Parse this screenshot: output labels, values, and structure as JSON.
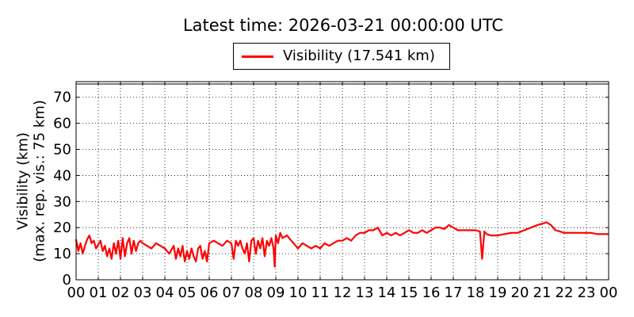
{
  "chart_data": {
    "type": "line",
    "title": "Latest time: 2026-03-21 00:00:00 UTC",
    "ylabel_line1": "Visibility (km)",
    "ylabel_line2": "(max. rep. vis.: 75 km)",
    "xlabel": "",
    "xlim": [
      0,
      24
    ],
    "ylim": [
      0,
      76
    ],
    "grid": true,
    "legend_position": "top-center-outside",
    "x_ticks": [
      0,
      1,
      2,
      3,
      4,
      5,
      6,
      7,
      8,
      9,
      10,
      11,
      12,
      13,
      14,
      15,
      16,
      17,
      18,
      19,
      20,
      21,
      22,
      23,
      24
    ],
    "x_tick_labels": [
      "00",
      "01",
      "02",
      "03",
      "04",
      "05",
      "06",
      "07",
      "08",
      "09",
      "10",
      "11",
      "12",
      "13",
      "14",
      "15",
      "16",
      "17",
      "18",
      "19",
      "20",
      "21",
      "22",
      "23",
      "00"
    ],
    "y_ticks": [
      0,
      10,
      20,
      30,
      40,
      50,
      60,
      70
    ],
    "series": [
      {
        "name": "Visibility (17.541 km)",
        "color": "#ff0000",
        "x": [
          0.0,
          0.1,
          0.2,
          0.3,
          0.4,
          0.5,
          0.6,
          0.7,
          0.8,
          0.9,
          1.0,
          1.1,
          1.2,
          1.3,
          1.4,
          1.5,
          1.6,
          1.7,
          1.8,
          1.9,
          2.0,
          2.1,
          2.2,
          2.3,
          2.4,
          2.5,
          2.6,
          2.7,
          2.8,
          2.9,
          3.0,
          3.2,
          3.4,
          3.6,
          3.8,
          4.0,
          4.2,
          4.4,
          4.5,
          4.6,
          4.7,
          4.8,
          4.9,
          5.0,
          5.1,
          5.2,
          5.3,
          5.4,
          5.5,
          5.6,
          5.7,
          5.8,
          5.9,
          6.0,
          6.2,
          6.4,
          6.6,
          6.8,
          7.0,
          7.1,
          7.2,
          7.3,
          7.4,
          7.5,
          7.6,
          7.7,
          7.8,
          7.9,
          8.0,
          8.1,
          8.2,
          8.3,
          8.4,
          8.5,
          8.6,
          8.7,
          8.8,
          8.9,
          8.95,
          9.0,
          9.1,
          9.2,
          9.3,
          9.5,
          9.7,
          9.9,
          10.0,
          10.2,
          10.4,
          10.6,
          10.8,
          11.0,
          11.2,
          11.4,
          11.6,
          11.8,
          12.0,
          12.2,
          12.4,
          12.6,
          12.8,
          13.0,
          13.2,
          13.4,
          13.6,
          13.8,
          14.0,
          14.2,
          14.4,
          14.6,
          14.8,
          15.0,
          15.2,
          15.4,
          15.6,
          15.8,
          16.0,
          16.2,
          16.4,
          16.6,
          16.8,
          17.0,
          17.2,
          17.4,
          17.6,
          17.8,
          18.0,
          18.2,
          18.3,
          18.4,
          18.5,
          18.7,
          19.0,
          19.3,
          19.6,
          19.9,
          20.2,
          20.5,
          20.8,
          21.0,
          21.2,
          21.4,
          21.6,
          21.8,
          22.0,
          22.3,
          22.6,
          22.9,
          23.2,
          23.5,
          23.8,
          24.0
        ],
        "y": [
          15.5,
          11,
          14,
          10,
          13,
          15.5,
          17,
          14,
          15,
          12,
          13.5,
          15,
          11,
          13,
          9,
          12,
          8,
          14,
          10,
          15,
          8,
          16,
          9,
          14,
          16,
          10,
          15,
          11,
          14,
          15,
          14,
          13,
          12,
          14,
          13,
          12,
          10,
          13,
          8,
          12,
          9,
          13,
          7,
          11,
          8,
          12,
          9,
          7,
          12,
          13,
          8,
          11,
          7,
          14,
          15,
          14,
          13,
          15,
          14,
          8,
          15,
          13,
          15,
          12,
          10,
          14,
          7,
          15,
          16,
          10,
          15,
          12,
          16,
          9,
          15,
          13,
          16,
          12,
          5,
          17,
          14,
          18,
          16,
          17,
          15,
          13,
          12,
          14,
          13,
          12,
          13,
          12,
          14,
          13,
          14,
          15,
          15,
          16,
          15,
          17,
          18,
          18,
          19,
          19,
          20,
          17,
          18,
          17,
          18,
          17,
          18,
          19,
          18,
          18,
          19,
          18,
          19,
          20,
          20,
          19.5,
          21,
          20,
          19,
          19,
          19,
          19,
          19,
          18.5,
          8,
          18.5,
          17.5,
          17,
          17,
          17.5,
          18,
          18,
          19,
          20,
          21,
          21.5,
          22,
          21,
          19,
          18.5,
          18,
          18,
          18,
          18,
          18,
          17.5,
          17.5,
          17.5
        ]
      }
    ]
  },
  "legend": {
    "label": "Visibility (17.541 km)"
  }
}
